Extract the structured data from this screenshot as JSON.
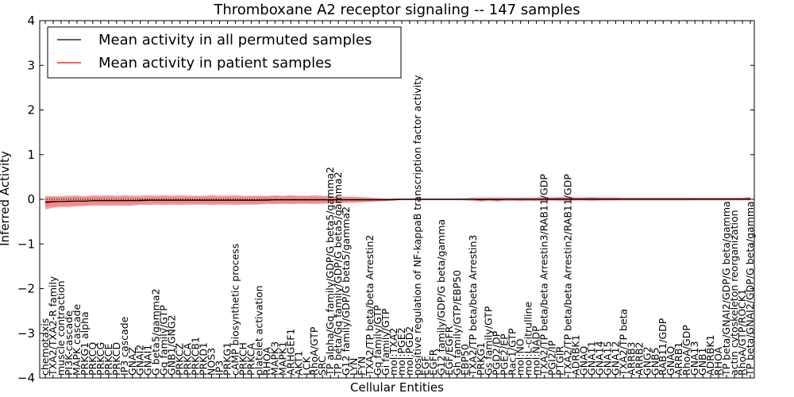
{
  "chart_data": {
    "type": "line",
    "title": "Thromboxane A2 receptor signaling -- 147 samples",
    "xlabel": "Cellular Entities",
    "ylabel": "Inferred Activity",
    "ylim": [
      -4,
      4
    ],
    "yticks": [
      -4,
      -3,
      -2,
      -1,
      0,
      1,
      2,
      3,
      4
    ],
    "legend_position": "top-left",
    "series": [
      {
        "name": "Mean activity in all permuted samples",
        "color": "#000000"
      },
      {
        "name": "Mean activity in patient samples",
        "color": "#ff0000"
      }
    ],
    "x_labels": [
      "chemotaxis",
      "TXA2/TXA2-R family",
      "muscle contraction",
      "PI3K-cascade",
      "MAPK cascade",
      "PRKG1 alpha",
      "PRKCQ",
      "PRKCG",
      "PRKCE",
      "PRKCD",
      "IP3 cascade",
      "GNAZ",
      "GNAI2",
      "GNAI1",
      "G beta5/gamma2",
      "Gq family/GTP",
      "GNB1/GNG2",
      "PRKCZ",
      "PRKCA",
      "PRKCB1",
      "PRKD1",
      "NOS3",
      "IP3",
      "PRKG1",
      "cAMP biosynthetic process",
      "PRKCH",
      "PRKCA",
      "platelet activation",
      "RHOA",
      "MAPK3",
      "MAPK1",
      "ARHGEF1",
      "AKT1",
      "LCK",
      "RhoA/GTP",
      "SRC",
      "TP alpha/Gq family/GDP/G beta5/gamma2",
      "TP beta/Gq family/GDP/G beta5/gamma2",
      "G12 family/GDP/G beta5/gamma2",
      "LYN",
      "FYN",
      "TXA2/TP beta/beta Arrestin2",
      "Gq family/GTP",
      "Gi family/GTP",
      "mol:TXA2",
      "mol:PGE2",
      "mol:PGD2",
      "positive regulation of NF-kappaB transcription factor activity",
      "EGF",
      "EGFR",
      "G12 family/GDP/G beta/gamma",
      "EGF/EGFR",
      "Gh family/GTP/EBP50",
      "EBP50",
      "TXA2/TP beta/beta Arrestin3",
      "PRKG1",
      "Gs family/GTP",
      "PGD2/DP",
      "PGE2/EP",
      "Rac1/GTP",
      "mol:NO",
      "mol:L-citrulline",
      "mol:NADP",
      "TXA2/TP beta/beta Arrestin3/RAB11/GDP",
      "PGI2/IP",
      "PTGIR",
      "TXA2/TP beta/beta Arrestin2/RAB11/GDP",
      "ADRBK1",
      "GNAQ",
      "GNA11",
      "GNA14",
      "GNA15",
      "GNA12",
      "TXA2/TP beta",
      "ARRB3",
      "ARRB2",
      "GNG2",
      "GNB5",
      "RAB11/GDP",
      "GNAQ",
      "ARRB1",
      "RhoA/GDP",
      "GNA13",
      "GNB1",
      "ADRBK1",
      "RHOA",
      "TP beta/GNAI2/GDP/G beta/gamma",
      "actin cytoskeleton reorganization",
      "RhoA/GTP/ROCK1",
      "TP beta/GNAI2/GDP/G beta/gamma"
    ],
    "patient_mean": [
      -0.08,
      -0.06,
      -0.05,
      -0.05,
      -0.04,
      -0.04,
      -0.03,
      -0.03,
      -0.03,
      -0.03,
      -0.03,
      -0.03,
      -0.02,
      -0.02,
      -0.02,
      -0.02,
      -0.02,
      -0.02,
      -0.02,
      -0.02,
      -0.02,
      -0.02,
      -0.02,
      -0.02,
      -0.02,
      -0.02,
      -0.02,
      -0.02,
      -0.01,
      -0.01,
      -0.01,
      -0.01,
      -0.01,
      -0.01,
      -0.01,
      -0.01,
      -0.01,
      -0.01,
      -0.01,
      -0.01,
      -0.01,
      -0.01,
      -0.01,
      -0.01,
      0.0,
      0.0,
      0.0,
      0.0,
      0.0,
      0.0,
      0.0,
      0.0,
      0.0,
      0.0,
      0.0,
      0.0,
      0.0,
      0.0,
      0.0,
      0.0,
      0.0,
      0.0,
      0.0,
      0.01,
      0.01,
      0.01,
      0.01,
      0.01,
      0.01,
      0.01,
      0.01,
      0.01,
      0.01,
      0.01,
      0.01,
      0.01,
      0.01,
      0.01,
      0.01,
      0.01,
      0.01,
      0.01,
      0.01,
      0.01,
      0.01,
      0.01,
      0.01,
      0.01,
      0.01,
      0.02
    ],
    "patient_band_halfwidth": [
      0.15,
      0.13,
      0.12,
      0.13,
      0.12,
      0.11,
      0.12,
      0.11,
      0.12,
      0.11,
      0.12,
      0.11,
      0.1,
      0.11,
      0.1,
      0.11,
      0.1,
      0.11,
      0.1,
      0.1,
      0.1,
      0.11,
      0.1,
      0.1,
      0.11,
      0.1,
      0.1,
      0.1,
      0.09,
      0.1,
      0.09,
      0.1,
      0.09,
      0.09,
      0.1,
      0.09,
      0.08,
      0.08,
      0.07,
      0.07,
      0.06,
      0.05,
      0.04,
      0.03,
      0.02,
      0.02,
      0.02,
      0.02,
      0.02,
      0.02,
      0.02,
      0.02,
      0.02,
      0.02,
      0.03,
      0.04,
      0.03,
      0.04,
      0.03,
      0.03,
      0.04,
      0.03,
      0.04,
      0.04,
      0.03,
      0.04,
      0.04,
      0.03,
      0.03,
      0.04,
      0.03,
      0.03,
      0.03,
      0.02,
      0.02,
      0.02,
      0.02,
      0.02,
      0.02,
      0.02,
      0.02,
      0.02,
      0.02,
      0.02,
      0.02,
      0.02,
      0.02,
      0.02,
      0.02,
      0.03
    ],
    "permuted_mean": [
      -0.06,
      -0.05,
      -0.05,
      -0.04,
      -0.04,
      -0.04,
      -0.03,
      -0.03,
      -0.03,
      -0.03,
      -0.03,
      -0.03,
      -0.03,
      -0.02,
      -0.02,
      -0.02,
      -0.02,
      -0.02,
      -0.02,
      -0.02,
      -0.02,
      -0.02,
      -0.02,
      -0.02,
      -0.02,
      -0.02,
      -0.02,
      -0.02,
      -0.02,
      -0.01,
      -0.01,
      -0.01,
      -0.01,
      -0.01,
      -0.01,
      -0.01,
      -0.01,
      -0.01,
      -0.01,
      -0.01,
      -0.01,
      -0.01,
      -0.01,
      -0.01,
      -0.01,
      0.0,
      0.0,
      0.0,
      0.0,
      0.0,
      0.0,
      0.0,
      0.0,
      0.0,
      0.0,
      -0.01,
      0.0,
      -0.01,
      0.0,
      0.0,
      0.0,
      0.0,
      0.0,
      0.0,
      0.0,
      0.0,
      0.0,
      0.0,
      0.0,
      0.0,
      0.0,
      0.0,
      0.0,
      0.0,
      0.0,
      0.0,
      0.0,
      0.0,
      0.0,
      0.0,
      0.0,
      0.0,
      0.0,
      0.0,
      0.0,
      0.0,
      0.0,
      0.0,
      0.0,
      0.0
    ],
    "permuted_band_halfwidth": [
      0.12,
      0.11,
      0.1,
      0.1,
      0.1,
      0.09,
      0.09,
      0.09,
      0.09,
      0.09,
      0.09,
      0.09,
      0.08,
      0.08,
      0.08,
      0.08,
      0.08,
      0.08,
      0.08,
      0.08,
      0.08,
      0.08,
      0.08,
      0.08,
      0.08,
      0.08,
      0.08,
      0.08,
      0.08,
      0.08,
      0.08,
      0.08,
      0.08,
      0.08,
      0.07,
      0.07,
      0.07,
      0.06,
      0.06,
      0.05,
      0.05,
      0.04,
      0.03,
      0.03,
      0.02,
      0.02,
      0.02,
      0.02,
      0.02,
      0.02,
      0.02,
      0.02,
      0.02,
      0.03,
      0.04,
      0.05,
      0.05,
      0.05,
      0.05,
      0.04,
      0.04,
      0.04,
      0.04,
      0.04,
      0.04,
      0.04,
      0.04,
      0.04,
      0.04,
      0.04,
      0.04,
      0.04,
      0.04,
      0.04,
      0.04,
      0.04,
      0.04,
      0.04,
      0.04,
      0.04,
      0.04,
      0.04,
      0.03,
      0.03,
      0.03,
      0.03,
      0.03,
      0.03,
      0.03,
      0.03
    ],
    "zero_line": true
  }
}
